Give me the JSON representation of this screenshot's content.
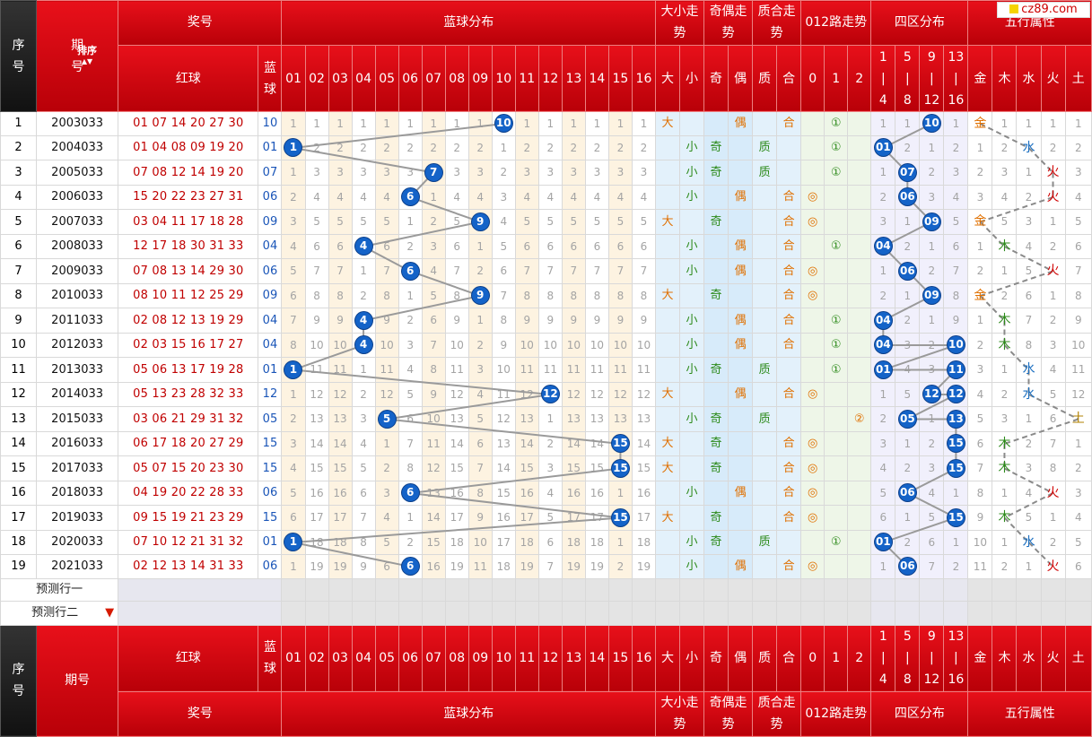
{
  "logo": "cz89.com",
  "headers": {
    "seq": "序号",
    "period": "期号",
    "sort": "排序",
    "prize": "奖号",
    "red": "红球",
    "blue": "蓝球",
    "blue_dist": "蓝球分布",
    "daxiao": "大小走势",
    "jiou": "奇偶走势",
    "zhihe": "质合走势",
    "lu012": "012路走势",
    "siqu": "四区分布",
    "wuxing": "五行属性",
    "dx": [
      "大",
      "小"
    ],
    "jo": [
      "奇",
      "偶"
    ],
    "zh": [
      "质",
      "合"
    ],
    "lu": [
      "0",
      "1",
      "2"
    ],
    "sq": [
      "1|4",
      "5|8",
      "9|12",
      "13|16"
    ],
    "wx": [
      "金",
      "木",
      "水",
      "火",
      "土"
    ],
    "nums": [
      "01",
      "02",
      "03",
      "04",
      "05",
      "06",
      "07",
      "08",
      "09",
      "10",
      "11",
      "12",
      "13",
      "14",
      "15",
      "16"
    ]
  },
  "predict": [
    "预测行一",
    "预测行二"
  ],
  "rows": [
    {
      "seq": "1",
      "period": "2003033",
      "red": "01 07 14 20 27 30",
      "blue": "10",
      "dist": [
        "1",
        "1",
        "1",
        "1",
        "1",
        "1",
        "1",
        "1",
        "1",
        "10",
        "1",
        "1",
        "1",
        "1",
        "1",
        "1"
      ],
      "dx": [
        "大",
        ""
      ],
      "jo": [
        "",
        "偶"
      ],
      "zh": [
        "",
        "合"
      ],
      "lu": [
        "",
        "①",
        ""
      ],
      "sq": [
        "1",
        "1",
        "10",
        "1"
      ],
      "wx": [
        "金",
        "1",
        "1",
        "1",
        "1"
      ]
    },
    {
      "seq": "2",
      "period": "2004033",
      "red": "01 04 08 09 19 20",
      "blue": "01",
      "dist": [
        "1",
        "2",
        "2",
        "2",
        "2",
        "2",
        "2",
        "2",
        "2",
        "1",
        "2",
        "2",
        "2",
        "2",
        "2",
        "2"
      ],
      "dx": [
        "",
        "小"
      ],
      "jo": [
        "奇",
        ""
      ],
      "zh": [
        "质",
        ""
      ],
      "lu": [
        "",
        "①",
        ""
      ],
      "sq": [
        "01",
        "2",
        "1",
        "2"
      ],
      "wx": [
        "1",
        "2",
        "水",
        "2",
        "2"
      ]
    },
    {
      "seq": "3",
      "period": "2005033",
      "red": "07 08 12 14 19 20",
      "blue": "07",
      "dist": [
        "1",
        "3",
        "3",
        "3",
        "3",
        "3",
        "7",
        "3",
        "3",
        "2",
        "3",
        "3",
        "3",
        "3",
        "3",
        "3"
      ],
      "dx": [
        "",
        "小"
      ],
      "jo": [
        "奇",
        ""
      ],
      "zh": [
        "质",
        ""
      ],
      "lu": [
        "",
        "①",
        ""
      ],
      "sq": [
        "1",
        "07",
        "2",
        "3"
      ],
      "wx": [
        "2",
        "3",
        "1",
        "火",
        "3"
      ]
    },
    {
      "seq": "4",
      "period": "2006033",
      "red": "15 20 22 23 27 31",
      "blue": "06",
      "dist": [
        "2",
        "4",
        "4",
        "4",
        "4",
        "6",
        "1",
        "4",
        "4",
        "3",
        "4",
        "4",
        "4",
        "4",
        "4",
        "4"
      ],
      "dx": [
        "",
        "小"
      ],
      "jo": [
        "",
        "偶"
      ],
      "zh": [
        "",
        "合"
      ],
      "lu": [
        "◎",
        "",
        ""
      ],
      "sq": [
        "2",
        "06",
        "3",
        "4"
      ],
      "wx": [
        "3",
        "4",
        "2",
        "火",
        "4"
      ]
    },
    {
      "seq": "5",
      "period": "2007033",
      "red": "03 04 11 17 18 28",
      "blue": "09",
      "dist": [
        "3",
        "5",
        "5",
        "5",
        "5",
        "1",
        "2",
        "5",
        "9",
        "4",
        "5",
        "5",
        "5",
        "5",
        "5",
        "5"
      ],
      "dx": [
        "大",
        ""
      ],
      "jo": [
        "奇",
        ""
      ],
      "zh": [
        "",
        "合"
      ],
      "lu": [
        "◎",
        "",
        ""
      ],
      "sq": [
        "3",
        "1",
        "09",
        "5"
      ],
      "wx": [
        "金",
        "5",
        "3",
        "1",
        "5"
      ]
    },
    {
      "seq": "6",
      "period": "2008033",
      "red": "12 17 18 30 31 33",
      "blue": "04",
      "dist": [
        "4",
        "6",
        "6",
        "4",
        "6",
        "2",
        "3",
        "6",
        "1",
        "5",
        "6",
        "6",
        "6",
        "6",
        "6",
        "6"
      ],
      "dx": [
        "",
        "小"
      ],
      "jo": [
        "",
        "偶"
      ],
      "zh": [
        "",
        "合"
      ],
      "lu": [
        "",
        "①",
        ""
      ],
      "sq": [
        "04",
        "2",
        "1",
        "6"
      ],
      "wx": [
        "1",
        "木",
        "4",
        "2",
        "6"
      ]
    },
    {
      "seq": "7",
      "period": "2009033",
      "red": "07 08 13 14 29 30",
      "blue": "06",
      "dist": [
        "5",
        "7",
        "7",
        "1",
        "7",
        "6",
        "4",
        "7",
        "2",
        "6",
        "7",
        "7",
        "7",
        "7",
        "7",
        "7"
      ],
      "dx": [
        "",
        "小"
      ],
      "jo": [
        "",
        "偶"
      ],
      "zh": [
        "",
        "合"
      ],
      "lu": [
        "◎",
        "",
        ""
      ],
      "sq": [
        "1",
        "06",
        "2",
        "7"
      ],
      "wx": [
        "2",
        "1",
        "5",
        "火",
        "7"
      ]
    },
    {
      "seq": "8",
      "period": "2010033",
      "red": "08 10 11 12 25 29",
      "blue": "09",
      "dist": [
        "6",
        "8",
        "8",
        "2",
        "8",
        "1",
        "5",
        "8",
        "9",
        "7",
        "8",
        "8",
        "8",
        "8",
        "8",
        "8"
      ],
      "dx": [
        "大",
        ""
      ],
      "jo": [
        "奇",
        ""
      ],
      "zh": [
        "",
        "合"
      ],
      "lu": [
        "◎",
        "",
        ""
      ],
      "sq": [
        "2",
        "1",
        "09",
        "8"
      ],
      "wx": [
        "金",
        "2",
        "6",
        "1",
        "8"
      ]
    },
    {
      "seq": "9",
      "period": "2011033",
      "red": "02 08 12 13 19 29",
      "blue": "04",
      "dist": [
        "7",
        "9",
        "9",
        "4",
        "9",
        "2",
        "6",
        "9",
        "1",
        "8",
        "9",
        "9",
        "9",
        "9",
        "9",
        "9"
      ],
      "dx": [
        "",
        "小"
      ],
      "jo": [
        "",
        "偶"
      ],
      "zh": [
        "",
        "合"
      ],
      "lu": [
        "",
        "①",
        ""
      ],
      "sq": [
        "04",
        "2",
        "1",
        "9"
      ],
      "wx": [
        "1",
        "木",
        "7",
        "2",
        "9"
      ]
    },
    {
      "seq": "10",
      "period": "2012033",
      "red": "02 03 15 16 17 27",
      "blue": "04",
      "dist": [
        "8",
        "10",
        "10",
        "4",
        "10",
        "3",
        "7",
        "10",
        "2",
        "9",
        "10",
        "10",
        "10",
        "10",
        "10",
        "10"
      ],
      "dx": [
        "",
        "小"
      ],
      "jo": [
        "",
        "偶"
      ],
      "zh": [
        "",
        "合"
      ],
      "lu": [
        "",
        "①",
        ""
      ],
      "sq": [
        "04",
        "3",
        "2",
        "10"
      ],
      "wx": [
        "2",
        "木",
        "8",
        "3",
        "10"
      ]
    },
    {
      "seq": "11",
      "period": "2013033",
      "red": "05 06 13 17 19 28",
      "blue": "01",
      "dist": [
        "1",
        "11",
        "11",
        "1",
        "11",
        "4",
        "8",
        "11",
        "3",
        "10",
        "11",
        "11",
        "11",
        "11",
        "11",
        "11"
      ],
      "dx": [
        "",
        "小"
      ],
      "jo": [
        "奇",
        ""
      ],
      "zh": [
        "质",
        ""
      ],
      "lu": [
        "",
        "①",
        ""
      ],
      "sq": [
        "01",
        "4",
        "3",
        "11"
      ],
      "wx": [
        "3",
        "1",
        "水",
        "4",
        "11"
      ]
    },
    {
      "seq": "12",
      "period": "2014033",
      "red": "05 13 23 28 32 33",
      "blue": "12",
      "dist": [
        "1",
        "12",
        "12",
        "2",
        "12",
        "5",
        "9",
        "12",
        "4",
        "11",
        "12",
        "12",
        "12",
        "12",
        "12",
        "12"
      ],
      "dx": [
        "大",
        ""
      ],
      "jo": [
        "",
        "偶"
      ],
      "zh": [
        "",
        "合"
      ],
      "lu": [
        "◎",
        "",
        ""
      ],
      "sq": [
        "1",
        "5",
        "12",
        "12"
      ],
      "wx": [
        "4",
        "2",
        "水",
        "5",
        "12"
      ]
    },
    {
      "seq": "13",
      "period": "2015033",
      "red": "03 06 21 29 31 32",
      "blue": "05",
      "dist": [
        "2",
        "13",
        "13",
        "3",
        "5",
        "6",
        "10",
        "13",
        "5",
        "12",
        "13",
        "1",
        "13",
        "13",
        "13",
        "13"
      ],
      "dx": [
        "",
        "小"
      ],
      "jo": [
        "奇",
        ""
      ],
      "zh": [
        "质",
        ""
      ],
      "lu": [
        "",
        "",
        "②"
      ],
      "sq": [
        "2",
        "05",
        "1",
        "13"
      ],
      "wx": [
        "5",
        "3",
        "1",
        "6",
        "土"
      ]
    },
    {
      "seq": "14",
      "period": "2016033",
      "red": "06 17 18 20 27 29",
      "blue": "15",
      "dist": [
        "3",
        "14",
        "14",
        "4",
        "1",
        "7",
        "11",
        "14",
        "6",
        "13",
        "14",
        "2",
        "14",
        "14",
        "15",
        "14"
      ],
      "dx": [
        "大",
        ""
      ],
      "jo": [
        "奇",
        ""
      ],
      "zh": [
        "",
        "合"
      ],
      "lu": [
        "◎",
        "",
        ""
      ],
      "sq": [
        "3",
        "1",
        "2",
        "15"
      ],
      "wx": [
        "6",
        "木",
        "2",
        "7",
        "1"
      ]
    },
    {
      "seq": "15",
      "period": "2017033",
      "red": "05 07 15 20 23 30",
      "blue": "15",
      "dist": [
        "4",
        "15",
        "15",
        "5",
        "2",
        "8",
        "12",
        "15",
        "7",
        "14",
        "15",
        "3",
        "15",
        "15",
        "15",
        "15"
      ],
      "dx": [
        "大",
        ""
      ],
      "jo": [
        "奇",
        ""
      ],
      "zh": [
        "",
        "合"
      ],
      "lu": [
        "◎",
        "",
        ""
      ],
      "sq": [
        "4",
        "2",
        "3",
        "15"
      ],
      "wx": [
        "7",
        "木",
        "3",
        "8",
        "2"
      ]
    },
    {
      "seq": "16",
      "period": "2018033",
      "red": "04 19 20 22 28 33",
      "blue": "06",
      "dist": [
        "5",
        "16",
        "16",
        "6",
        "3",
        "6",
        "13",
        "16",
        "8",
        "15",
        "16",
        "4",
        "16",
        "16",
        "1",
        "16"
      ],
      "dx": [
        "",
        "小"
      ],
      "jo": [
        "",
        "偶"
      ],
      "zh": [
        "",
        "合"
      ],
      "lu": [
        "◎",
        "",
        ""
      ],
      "sq": [
        "5",
        "06",
        "4",
        "1"
      ],
      "wx": [
        "8",
        "1",
        "4",
        "火",
        "3"
      ]
    },
    {
      "seq": "17",
      "period": "2019033",
      "red": "09 15 19 21 23 29",
      "blue": "15",
      "dist": [
        "6",
        "17",
        "17",
        "7",
        "4",
        "1",
        "14",
        "17",
        "9",
        "16",
        "17",
        "5",
        "17",
        "17",
        "15",
        "17"
      ],
      "dx": [
        "大",
        ""
      ],
      "jo": [
        "奇",
        ""
      ],
      "zh": [
        "",
        "合"
      ],
      "lu": [
        "◎",
        "",
        ""
      ],
      "sq": [
        "6",
        "1",
        "5",
        "15"
      ],
      "wx": [
        "9",
        "木",
        "5",
        "1",
        "4"
      ]
    },
    {
      "seq": "18",
      "period": "2020033",
      "red": "07 10 12 21 31 32",
      "blue": "01",
      "dist": [
        "1",
        "18",
        "18",
        "8",
        "5",
        "2",
        "15",
        "18",
        "10",
        "17",
        "18",
        "6",
        "18",
        "18",
        "1",
        "18"
      ],
      "dx": [
        "",
        "小"
      ],
      "jo": [
        "奇",
        ""
      ],
      "zh": [
        "质",
        ""
      ],
      "lu": [
        "",
        "①",
        ""
      ],
      "sq": [
        "01",
        "2",
        "6",
        "1"
      ],
      "wx": [
        "10",
        "1",
        "水",
        "2",
        "5"
      ]
    },
    {
      "seq": "19",
      "period": "2021033",
      "red": "02 12 13 14 31 33",
      "blue": "06",
      "dist": [
        "1",
        "19",
        "19",
        "9",
        "6",
        "6",
        "16",
        "19",
        "11",
        "18",
        "19",
        "7",
        "19",
        "19",
        "2",
        "19"
      ],
      "dx": [
        "",
        "小"
      ],
      "jo": [
        "",
        "偶"
      ],
      "zh": [
        "",
        "合"
      ],
      "lu": [
        "◎",
        "",
        ""
      ],
      "sq": [
        "1",
        "06",
        "7",
        "2"
      ],
      "wx": [
        "11",
        "2",
        "1",
        "火",
        "6"
      ]
    }
  ],
  "colors": {
    "header": "#d40a12",
    "ball": "#1463c8",
    "line": "#9a9a9a"
  }
}
